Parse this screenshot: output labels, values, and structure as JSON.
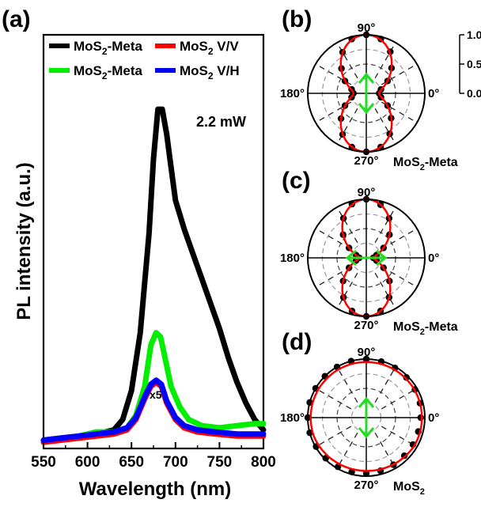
{
  "chart_data": [
    {
      "id": "a",
      "panel_label": "(a)",
      "type": "line",
      "xlabel": "Wavelength  (nm)",
      "ylabel": "PL intensity (a.u.)",
      "xlim": [
        550,
        800
      ],
      "xticks": [
        "550",
        "600",
        "650",
        "700",
        "750",
        "800"
      ],
      "annotation": "2.2 mW",
      "scale_note": "x5",
      "legend": {
        "placement": "top",
        "entries": [
          {
            "sub_prefix": "MoS",
            "sub": "2",
            "suffix": "-Meta",
            "color": "#000000"
          },
          {
            "sub_prefix": "MoS",
            "sub": "2",
            "suffix": "  V/V",
            "color": "#ff0000"
          },
          {
            "sub_prefix": "MoS",
            "sub": "2",
            "suffix": "-Meta",
            "color": "#00ee00"
          },
          {
            "sub_prefix": "MoS",
            "sub": "2",
            "suffix": "  V/H",
            "color": "#0000ff"
          }
        ]
      },
      "series": [
        {
          "color": "#000000",
          "x": [
            550,
            570,
            590,
            610,
            630,
            640,
            650,
            660,
            670,
            675,
            680,
            685,
            690,
            695,
            700,
            710,
            720,
            730,
            740,
            750,
            760,
            770,
            780,
            790,
            800
          ],
          "y": [
            0.02,
            0.025,
            0.03,
            0.035,
            0.045,
            0.07,
            0.14,
            0.28,
            0.52,
            0.7,
            0.82,
            0.82,
            0.76,
            0.68,
            0.6,
            0.53,
            0.47,
            0.41,
            0.35,
            0.29,
            0.22,
            0.16,
            0.11,
            0.07,
            0.045
          ]
        },
        {
          "color": "#00ee00",
          "x": [
            550,
            570,
            590,
            610,
            630,
            645,
            655,
            665,
            672,
            678,
            683,
            688,
            695,
            705,
            715,
            730,
            750,
            770,
            790,
            800
          ],
          "y": [
            0.02,
            0.025,
            0.03,
            0.04,
            0.04,
            0.05,
            0.08,
            0.15,
            0.25,
            0.28,
            0.27,
            0.22,
            0.15,
            0.1,
            0.07,
            0.055,
            0.05,
            0.055,
            0.06,
            0.06
          ]
        },
        {
          "color": "#ff0000",
          "x": [
            550,
            570,
            590,
            610,
            630,
            645,
            655,
            665,
            672,
            678,
            684,
            690,
            700,
            710,
            725,
            745,
            770,
            800
          ],
          "y": [
            0.015,
            0.02,
            0.025,
            0.03,
            0.035,
            0.045,
            0.07,
            0.12,
            0.15,
            0.16,
            0.15,
            0.11,
            0.07,
            0.05,
            0.04,
            0.035,
            0.03,
            0.03
          ]
        },
        {
          "color": "#0000ff",
          "x": [
            550,
            570,
            590,
            610,
            630,
            645,
            655,
            665,
            672,
            678,
            684,
            690,
            700,
            710,
            725,
            745,
            770,
            800
          ],
          "y": [
            0.02,
            0.025,
            0.03,
            0.035,
            0.04,
            0.05,
            0.075,
            0.125,
            0.155,
            0.165,
            0.155,
            0.115,
            0.075,
            0.055,
            0.045,
            0.04,
            0.035,
            0.035
          ]
        }
      ]
    },
    {
      "id": "b",
      "panel_label": "(b)",
      "type": "polar",
      "sample": {
        "prefix": "MoS",
        "sub": "2",
        "suffix": "-Meta"
      },
      "angle_labels": [
        "90°",
        "180°",
        "270°",
        "0°"
      ],
      "radial_ticks": [
        "1.0",
        "0.5",
        "0.0"
      ],
      "rlim": [
        0,
        1.0
      ],
      "fit": {
        "form": "amplitude * cos^2(theta - 90°) + offset",
        "amplitude": 0.78,
        "offset": 0.22
      },
      "points_deg": [
        0,
        15,
        30,
        45,
        60,
        75,
        90,
        105,
        120,
        135,
        150,
        165,
        180,
        195,
        210,
        225,
        240,
        255,
        270,
        285,
        300,
        315,
        330,
        345
      ],
      "points_r": [
        0.22,
        0.26,
        0.42,
        0.61,
        0.82,
        0.96,
        1.0,
        0.96,
        0.81,
        0.6,
        0.42,
        0.26,
        0.22,
        0.26,
        0.42,
        0.61,
        0.81,
        0.95,
        1.0,
        0.95,
        0.8,
        0.6,
        0.42,
        0.26
      ],
      "polarization_arrow": "vertical"
    },
    {
      "id": "c",
      "panel_label": "(c)",
      "type": "polar",
      "sample": {
        "prefix": "MoS",
        "sub": "2",
        "suffix": "-Meta"
      },
      "angle_labels": [
        "90°",
        "180°",
        "270°",
        "0°"
      ],
      "rlim": [
        0,
        1.0
      ],
      "fit": {
        "form": "amplitude * cos^2(theta - 90°) + offset",
        "amplitude": 0.88,
        "offset": 0.12
      },
      "points_deg": [
        0,
        15,
        30,
        45,
        60,
        75,
        90,
        105,
        120,
        135,
        150,
        165,
        180,
        195,
        210,
        225,
        240,
        255,
        270,
        285,
        300,
        315,
        330,
        345
      ],
      "points_r": [
        0.12,
        0.18,
        0.34,
        0.56,
        0.78,
        0.94,
        1.0,
        0.95,
        0.78,
        0.56,
        0.34,
        0.18,
        0.12,
        0.18,
        0.34,
        0.56,
        0.78,
        0.94,
        1.0,
        0.94,
        0.78,
        0.56,
        0.34,
        0.18
      ],
      "polarization_arrow": "horizontal"
    },
    {
      "id": "d",
      "panel_label": "(d)",
      "type": "polar",
      "sample": {
        "prefix": "MoS",
        "sub": "2",
        "suffix": ""
      },
      "angle_labels": [
        "90°",
        "180°",
        "270°",
        "0°"
      ],
      "rlim": [
        0,
        1.0
      ],
      "fit": {
        "form": "constant",
        "value": 0.95
      },
      "points_deg": [
        0,
        15,
        30,
        45,
        60,
        75,
        90,
        105,
        120,
        135,
        150,
        165,
        180,
        195,
        210,
        225,
        240,
        255,
        270,
        285,
        300,
        315,
        330,
        345
      ],
      "points_r": [
        0.93,
        0.95,
        0.96,
        0.97,
        0.98,
        0.99,
        1.0,
        1.0,
        1.0,
        1.0,
        1.0,
        1.0,
        1.0,
        1.0,
        0.99,
        0.98,
        0.97,
        0.96,
        0.95,
        0.94,
        0.93,
        0.92,
        0.92,
        0.92
      ],
      "polarization_arrow": "vertical"
    }
  ]
}
